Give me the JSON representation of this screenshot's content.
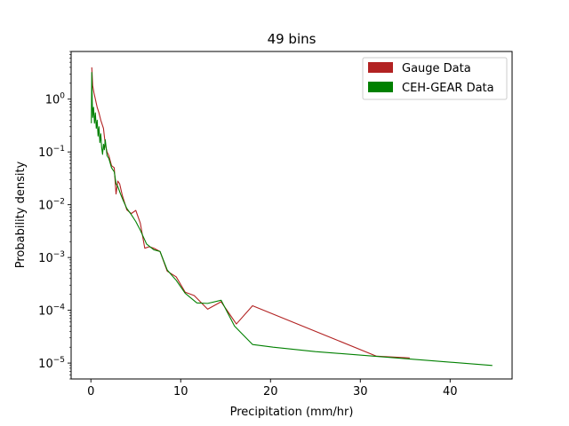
{
  "chart_data": {
    "type": "line",
    "title": "49 bins",
    "xlabel": "Precipitation (mm/hr)",
    "ylabel": "Probability density",
    "xlim": [
      -2.2,
      46.9
    ],
    "ylim": [
      5e-06,
      8
    ],
    "yscale": "log",
    "xticks": [
      0,
      10,
      20,
      30,
      40
    ],
    "xtick_labels": [
      "0",
      "10",
      "20",
      "30",
      "40"
    ],
    "yticks": [
      1e-05,
      0.0001,
      0.001,
      0.01,
      0.1,
      1
    ],
    "ytick_labels": [
      {
        "base": "10",
        "exp": "−5"
      },
      {
        "base": "10",
        "exp": "−4"
      },
      {
        "base": "10",
        "exp": "−3"
      },
      {
        "base": "10",
        "exp": "−2"
      },
      {
        "base": "10",
        "exp": "−1"
      },
      {
        "base": "10",
        "exp": "0"
      }
    ],
    "grid": false,
    "legend_position": "top-right",
    "series": [
      {
        "name": "Gauge Data",
        "color": "#b22222",
        "x": [
          0.1,
          0.2,
          0.35,
          0.5,
          0.7,
          0.9,
          1.1,
          1.4,
          1.6,
          1.8,
          2.0,
          2.3,
          2.6,
          2.8,
          3.0,
          3.2,
          3.5,
          4.0,
          4.5,
          5.0,
          5.5,
          6.0,
          6.5,
          7.0,
          7.7,
          8.5,
          9.5,
          10.5,
          11.5,
          13.0,
          14.5,
          16.2,
          18.0,
          31.8,
          35.5
        ],
        "y": [
          4.0,
          1.8,
          1.3,
          1.0,
          0.7,
          0.55,
          0.4,
          0.28,
          0.14,
          0.1,
          0.085,
          0.055,
          0.05,
          0.016,
          0.028,
          0.025,
          0.015,
          0.008,
          0.0068,
          0.0078,
          0.0045,
          0.0015,
          0.0016,
          0.0015,
          0.0013,
          0.00055,
          0.00043,
          0.00022,
          0.00019,
          0.000105,
          0.000145,
          5.5e-05,
          0.000122,
          1.35e-05,
          1.25e-05
        ]
      },
      {
        "name": "CEH-GEAR Data",
        "color": "#008000",
        "x": [
          0.05,
          0.1,
          0.15,
          0.2,
          0.3,
          0.4,
          0.5,
          0.6,
          0.7,
          0.8,
          0.9,
          1.0,
          1.1,
          1.2,
          1.3,
          1.4,
          1.5,
          1.6,
          1.8,
          2.0,
          2.3,
          2.6,
          2.8,
          3.0,
          3.3,
          3.6,
          4.0,
          4.5,
          5.0,
          5.5,
          6.2,
          7.0,
          7.7,
          8.5,
          9.5,
          10.5,
          11.8,
          13.0,
          14.5,
          16.0,
          18.0,
          20.3,
          25.0,
          31.5,
          44.7
        ],
        "y": [
          0.35,
          3.2,
          0.9,
          0.45,
          0.7,
          0.35,
          0.55,
          0.28,
          0.4,
          0.2,
          0.3,
          0.15,
          0.22,
          0.12,
          0.09,
          0.14,
          0.11,
          0.17,
          0.085,
          0.075,
          0.05,
          0.042,
          0.025,
          0.022,
          0.016,
          0.012,
          0.0085,
          0.0065,
          0.0048,
          0.0033,
          0.0018,
          0.0014,
          0.0013,
          0.00058,
          0.00037,
          0.00021,
          0.000138,
          0.000135,
          0.000155,
          5e-05,
          2.25e-05,
          2e-05,
          1.65e-05,
          1.35e-05,
          9e-06
        ]
      }
    ]
  }
}
